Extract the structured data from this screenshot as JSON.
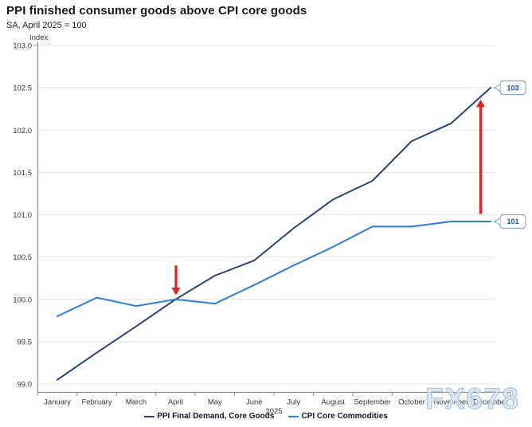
{
  "header": {
    "title": "PPI finished consumer goods above CPI core goods",
    "subtitle": "SA, April 2025 = 100"
  },
  "chart_data": {
    "type": "line",
    "title": "PPI finished consumer goods above CPI core goods",
    "subtitle": "SA, April 2025 = 100",
    "ylabel": "Index",
    "xlabel": "",
    "x_axis_year": "2025",
    "x_categories": [
      "January",
      "February",
      "March",
      "April",
      "May",
      "June",
      "July",
      "August",
      "September",
      "October",
      "November",
      "December"
    ],
    "y_ticks": [
      "103.0",
      "102.5",
      "102.0",
      "101.5",
      "101.0",
      "100.5",
      "100.0",
      "99.5",
      "99.0"
    ],
    "ylim": [
      98.9,
      103.0
    ],
    "grid": "horizontal",
    "legend_position": "bottom",
    "series": [
      {
        "name": "PPI Final Demand, Core Goods",
        "color": "#27436f",
        "values": [
          99.05,
          99.37,
          99.68,
          100.0,
          100.28,
          100.46,
          100.84,
          101.18,
          101.4,
          101.87,
          102.08,
          102.5
        ]
      },
      {
        "name": "CPI Core Commodities",
        "color": "#2b7cd3",
        "values": [
          99.8,
          100.02,
          99.92,
          100.0,
          99.95,
          100.17,
          100.4,
          100.62,
          100.86,
          100.86,
          100.92,
          100.92
        ]
      }
    ],
    "end_labels": [
      {
        "series": 0,
        "label": "103"
      },
      {
        "series": 1,
        "label": "101"
      }
    ],
    "annotations": [
      {
        "name": "april-crossover-arrow",
        "shape": "arrow-down",
        "color": "#e8231d",
        "month_index": 3,
        "x_offset": 0.6,
        "value_from": 100.4,
        "value_to": 100.05
      },
      {
        "name": "december-gap-arrow",
        "shape": "arrow-up",
        "color": "#e8231d",
        "month_index": 11,
        "x_offset": -12.5,
        "value_from": 101.01,
        "value_to": 102.36
      }
    ],
    "watermark": "FX678",
    "style": {
      "gridline_color": "#e2e2e2",
      "axis_color": "#8c8c8c",
      "tick_label_color": "#333333",
      "callout_border": "#88a6cb",
      "callout_text": "#1d4fa0",
      "watermark_fill": "#d7e5f2",
      "watermark_stroke": "#9fbeda"
    }
  }
}
